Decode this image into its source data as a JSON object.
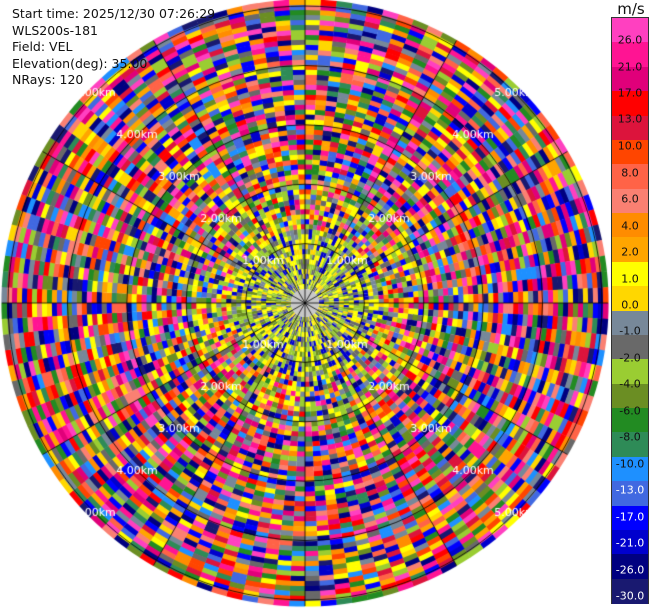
{
  "info": {
    "start_time": "Start time: 2025/12/30 07:26:29",
    "instrument": "WLS200s-181",
    "field": "Field: VEL",
    "elevation": "Elevation(deg): 35.00",
    "nrays": "NRays: 120"
  },
  "colorbar": {
    "unit": "m/s",
    "top_value": "26.0",
    "bottom_value": "-30.0",
    "ticks": [
      "26.0",
      "21.0",
      "17.0",
      "13.0",
      "10.0",
      "8.0",
      "6.0",
      "4.0",
      "2.0",
      "1.0",
      "0.0",
      "-1.0",
      "-2.0",
      "-4.0",
      "-6.0",
      "-8.0",
      "-10.0",
      "-13.0",
      "-17.0",
      "-21.0",
      "-26.0",
      "-30.0"
    ],
    "colors": [
      "#ff40c0",
      "#ff1493",
      "#e0007a",
      "#ff0000",
      "#dc143c",
      "#ff4500",
      "#ff6347",
      "#fa8072",
      "#ff8c00",
      "#ffa500",
      "#ffff00",
      "#ffd700",
      "#778899",
      "#696969",
      "#9acd32",
      "#6b8e23",
      "#228b22",
      "#2e8b57",
      "#1e90ff",
      "#4169e1",
      "#0000ff",
      "#0000cd",
      "#000080",
      "#191970"
    ]
  },
  "range_rings": {
    "labels": [
      "1.00km",
      "2.00km",
      "3.00km",
      "4.00km",
      "5.00km"
    ],
    "max_range_km": 5.0
  }
}
